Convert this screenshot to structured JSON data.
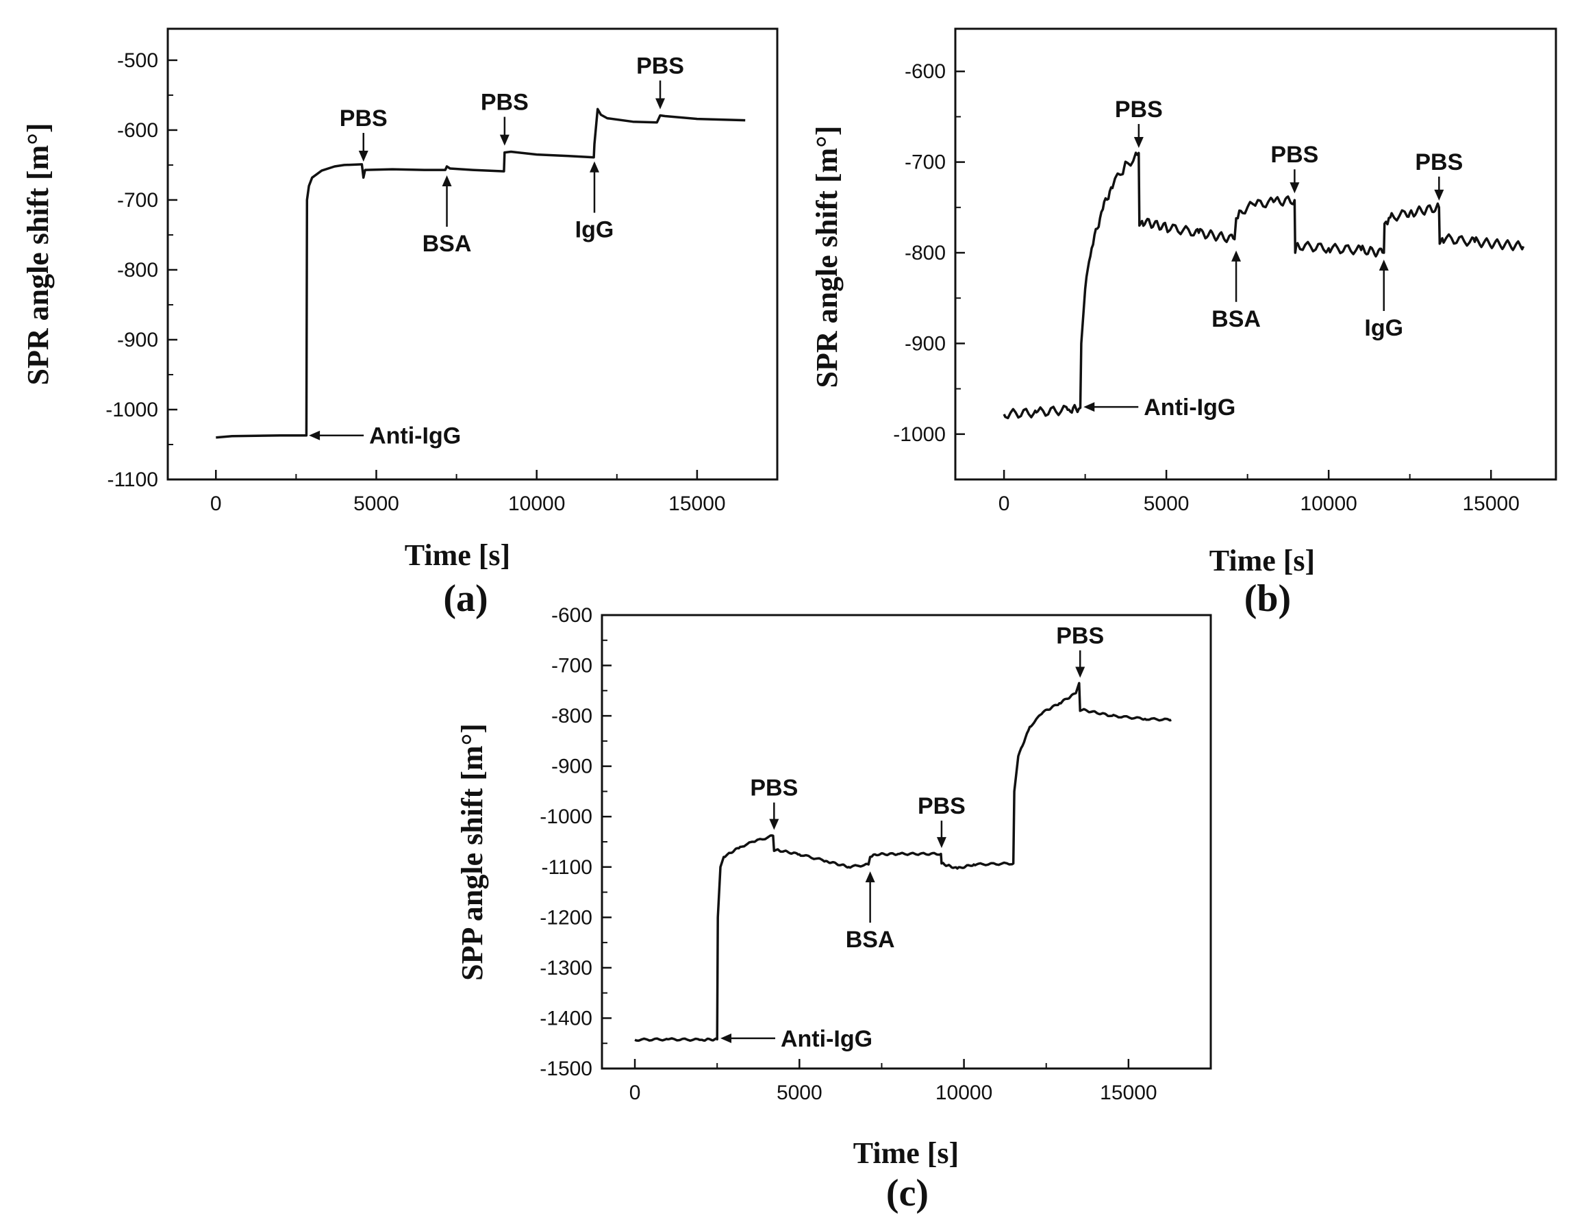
{
  "chart_data": [
    {
      "type": "line",
      "panel_label": "(a)",
      "xlabel": "Time [s]",
      "ylabel": "SPR angle shift [m°]",
      "xlim": [
        -1500,
        17500
      ],
      "ylim": [
        -1100,
        -455
      ],
      "xticks": [
        0,
        5000,
        10000,
        15000
      ],
      "yticks": [
        -1100,
        -1000,
        -900,
        -800,
        -700,
        -600,
        -500
      ],
      "series": [
        {
          "noise": 0,
          "points": [
            [
              0,
              -1040
            ],
            [
              500,
              -1038
            ],
            [
              2000,
              -1037
            ],
            [
              2820,
              -1037
            ],
            [
              2840,
              -700
            ],
            [
              2900,
              -680
            ],
            [
              3000,
              -668
            ],
            [
              3300,
              -658
            ],
            [
              3700,
              -652
            ],
            [
              4000,
              -650
            ],
            [
              4550,
              -649
            ],
            [
              4600,
              -668
            ],
            [
              4650,
              -657
            ],
            [
              5500,
              -656
            ],
            [
              6500,
              -657
            ],
            [
              7150,
              -657
            ],
            [
              7200,
              -652
            ],
            [
              7300,
              -655
            ],
            [
              8000,
              -657
            ],
            [
              8980,
              -659
            ],
            [
              9000,
              -632
            ],
            [
              9200,
              -631
            ],
            [
              10000,
              -635
            ],
            [
              11000,
              -637
            ],
            [
              11780,
              -639
            ],
            [
              11800,
              -620
            ],
            [
              11860,
              -590
            ],
            [
              11900,
              -570
            ],
            [
              12000,
              -578
            ],
            [
              12200,
              -583
            ],
            [
              13000,
              -588
            ],
            [
              13750,
              -589
            ],
            [
              13850,
              -579
            ],
            [
              14000,
              -580
            ],
            [
              15000,
              -584
            ],
            [
              16500,
              -586
            ]
          ]
        }
      ],
      "annotations": [
        {
          "label": "PBS",
          "x": 4600,
          "y": -655,
          "dir": "down"
        },
        {
          "label": "BSA",
          "x": 7200,
          "y": -655,
          "dir": "up"
        },
        {
          "label": "PBS",
          "x": 9000,
          "y": -632,
          "dir": "down"
        },
        {
          "label": "IgG",
          "x": 11800,
          "y": -635,
          "dir": "up"
        },
        {
          "label": "PBS",
          "x": 13850,
          "y": -580,
          "dir": "down"
        },
        {
          "label": "Anti-IgG",
          "x": 2900,
          "y": -1037,
          "dir": "left"
        }
      ]
    },
    {
      "type": "line",
      "panel_label": "(b)",
      "xlabel": "Time [s]",
      "ylabel": "SPR angle shift [m°]",
      "xlim": [
        -1500,
        17000
      ],
      "ylim": [
        -1050,
        -553
      ],
      "xticks": [
        0,
        5000,
        10000,
        15000
      ],
      "yticks": [
        -1000,
        -900,
        -800,
        -700,
        -600
      ],
      "series": [
        {
          "noise": 5,
          "points": [
            [
              0,
              -978
            ],
            [
              1000,
              -976
            ],
            [
              2000,
              -973
            ],
            [
              2350,
              -971
            ],
            [
              2380,
              -900
            ],
            [
              2500,
              -840
            ],
            [
              2700,
              -795
            ],
            [
              3000,
              -755
            ],
            [
              3300,
              -728
            ],
            [
              3700,
              -706
            ],
            [
              4100,
              -692
            ],
            [
              4150,
              -690
            ],
            [
              4170,
              -770
            ],
            [
              4250,
              -765
            ],
            [
              5000,
              -772
            ],
            [
              6000,
              -778
            ],
            [
              7100,
              -785
            ],
            [
              7150,
              -762
            ],
            [
              7300,
              -754
            ],
            [
              7700,
              -747
            ],
            [
              8300,
              -744
            ],
            [
              8950,
              -742
            ],
            [
              8970,
              -800
            ],
            [
              9000,
              -792
            ],
            [
              10000,
              -795
            ],
            [
              11000,
              -797
            ],
            [
              11700,
              -800
            ],
            [
              11720,
              -768
            ],
            [
              11900,
              -761
            ],
            [
              12500,
              -756
            ],
            [
              13400,
              -750
            ],
            [
              13420,
              -790
            ],
            [
              13500,
              -784
            ],
            [
              14500,
              -788
            ],
            [
              16000,
              -793
            ]
          ]
        }
      ],
      "annotations": [
        {
          "label": "PBS",
          "x": 4150,
          "y": -692,
          "dir": "down"
        },
        {
          "label": "BSA",
          "x": 7150,
          "y": -790,
          "dir": "up"
        },
        {
          "label": "PBS",
          "x": 8950,
          "y": -742,
          "dir": "down"
        },
        {
          "label": "IgG",
          "x": 11700,
          "y": -800,
          "dir": "up"
        },
        {
          "label": "PBS",
          "x": 13400,
          "y": -750,
          "dir": "down"
        },
        {
          "label": "Anti-IgG",
          "x": 2450,
          "y": -970,
          "dir": "left"
        }
      ]
    },
    {
      "type": "line",
      "panel_label": "(c)",
      "xlabel": "Time [s]",
      "ylabel": "SPP angle shift [m°]",
      "xlim": [
        -1000,
        17500
      ],
      "ylim": [
        -1500,
        -600
      ],
      "xticks": [
        0,
        5000,
        10000,
        15000
      ],
      "yticks": [
        -1500,
        -1400,
        -1300,
        -1200,
        -1100,
        -1000,
        -900,
        -800,
        -700,
        -600
      ],
      "series": [
        {
          "noise": 2,
          "points": [
            [
              0,
              -1443
            ],
            [
              1000,
              -1442
            ],
            [
              2000,
              -1443
            ],
            [
              2500,
              -1442
            ],
            [
              2520,
              -1200
            ],
            [
              2600,
              -1100
            ],
            [
              2700,
              -1080
            ],
            [
              2900,
              -1072
            ],
            [
              3200,
              -1060
            ],
            [
              3600,
              -1050
            ],
            [
              4200,
              -1038
            ],
            [
              4230,
              -1068
            ],
            [
              4300,
              -1066
            ],
            [
              5000,
              -1075
            ],
            [
              5800,
              -1088
            ],
            [
              6500,
              -1100
            ],
            [
              7100,
              -1095
            ],
            [
              7150,
              -1080
            ],
            [
              7300,
              -1075
            ],
            [
              8000,
              -1074
            ],
            [
              9300,
              -1074
            ],
            [
              9320,
              -1093
            ],
            [
              9500,
              -1097
            ],
            [
              9800,
              -1103
            ],
            [
              10300,
              -1095
            ],
            [
              11500,
              -1093
            ],
            [
              11530,
              -950
            ],
            [
              11650,
              -880
            ],
            [
              12000,
              -822
            ],
            [
              12400,
              -793
            ],
            [
              12900,
              -775
            ],
            [
              13400,
              -755
            ],
            [
              13500,
              -735
            ],
            [
              13530,
              -790
            ],
            [
              13600,
              -788
            ],
            [
              14500,
              -800
            ],
            [
              15500,
              -806
            ],
            [
              16300,
              -808
            ]
          ]
        }
      ],
      "annotations": [
        {
          "label": "PBS",
          "x": 4230,
          "y": -1040,
          "dir": "down"
        },
        {
          "label": "BSA",
          "x": 7150,
          "y": -1095,
          "dir": "up"
        },
        {
          "label": "PBS",
          "x": 9320,
          "y": -1076,
          "dir": "down"
        },
        {
          "label": "PBS",
          "x": 13530,
          "y": -738,
          "dir": "down"
        },
        {
          "label": "Anti-IgG",
          "x": 2600,
          "y": -1440,
          "dir": "left"
        }
      ]
    }
  ]
}
